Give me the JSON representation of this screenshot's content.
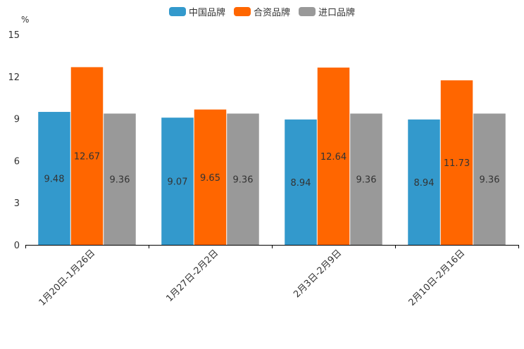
{
  "chart_data": {
    "type": "bar",
    "unit_label": "%",
    "categories": [
      "1月20日-1月26日",
      "1月27日-2月2日",
      "2月3日-2月9日",
      "2月10日-2月16日"
    ],
    "series": [
      {
        "name": "中国品牌",
        "color": "#3399cc",
        "values": [
          9.48,
          9.07,
          8.94,
          8.94
        ]
      },
      {
        "name": "合资品牌",
        "color": "#ff6600",
        "values": [
          12.67,
          9.65,
          12.64,
          11.73
        ]
      },
      {
        "name": "进口品牌",
        "color": "#999999",
        "values": [
          9.36,
          9.36,
          9.36,
          9.36
        ]
      }
    ],
    "ylim": [
      0,
      15
    ],
    "yticks": [
      "0",
      "3",
      "6",
      "9",
      "12",
      "15"
    ],
    "legend_position": "top-center"
  }
}
